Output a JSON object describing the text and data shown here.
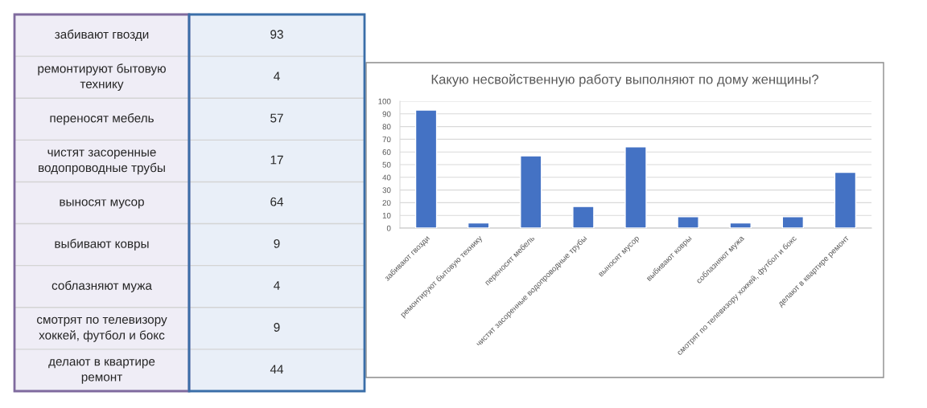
{
  "chart_data": [
    {
      "type": "other",
      "categories": [
        "забивают гвозди",
        "ремонтируют бытовую технику",
        "переносят мебель",
        "чистят засоренные водопроводные трубы",
        "выносят мусор",
        "выбивают ковры",
        "соблазняют мужа",
        "смотрят по телевизору хоккей, футбол и бокс",
        "делают в квартире ремонт"
      ],
      "values": [
        93,
        4,
        57,
        17,
        64,
        9,
        4,
        9,
        44
      ],
      "data_labels": true
    },
    {
      "type": "bar",
      "title": "Какую несвойственную работу выполняют по дому женщины?",
      "categories": [
        "забивают гвозди",
        "ремонтируют бытовую технику",
        "переносят мебель",
        "чистят засоренные водопроводные трубы",
        "выносят мусор",
        "выбивают ковры",
        "соблазняют мужа",
        "смотрят по телевизору хоккей, футбол и бокс",
        "делают в квартире ремонт"
      ],
      "values": [
        93,
        4,
        57,
        17,
        64,
        9,
        4,
        9,
        44
      ],
      "color": "#4472c4",
      "ylim": [
        0,
        100
      ],
      "yticks": [
        0,
        10,
        20,
        30,
        40,
        50,
        60,
        70,
        80,
        90,
        100
      ],
      "grid": "y"
    }
  ]
}
